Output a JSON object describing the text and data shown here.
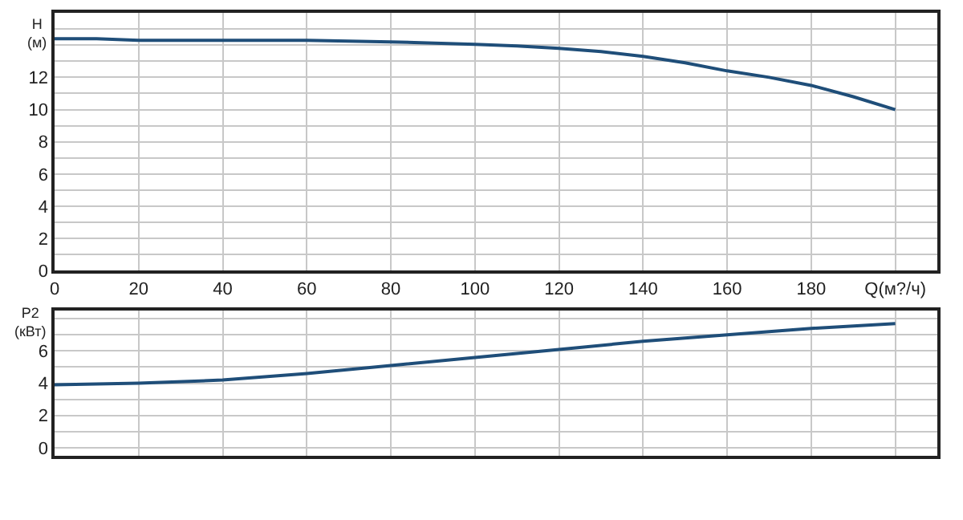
{
  "chart_data": [
    {
      "type": "line",
      "ylabel": "H (м)",
      "x": [
        0,
        10,
        20,
        40,
        60,
        80,
        100,
        110,
        120,
        130,
        140,
        150,
        160,
        170,
        180,
        190,
        200
      ],
      "series": [
        {
          "color": "#1f4e79",
          "values": [
            14.4,
            14.4,
            14.3,
            14.3,
            14.3,
            14.2,
            14.05,
            13.95,
            13.8,
            13.6,
            13.3,
            12.9,
            12.4,
            12.0,
            11.5,
            10.8,
            10.0
          ]
        }
      ],
      "xlim": [
        0,
        210
      ],
      "xticks": [
        0,
        20,
        40,
        60,
        80,
        100,
        120,
        140,
        160,
        180,
        {
          "value": 200,
          "label": "Q(м?/ч)"
        }
      ],
      "ylim": [
        0,
        16
      ],
      "yticks": [
        0,
        {
          "value": 1,
          "label": null
        },
        2,
        {
          "value": 3,
          "label": null
        },
        4,
        {
          "value": 5,
          "label": null
        },
        6,
        {
          "value": 7,
          "label": null
        },
        8,
        {
          "value": 9,
          "label": null
        },
        10,
        {
          "value": 11,
          "label": null
        },
        12,
        {
          "value": 13,
          "label": null
        },
        {
          "value": 14,
          "label": null
        },
        {
          "value": 15,
          "label": null
        }
      ],
      "grid": true,
      "legend": false,
      "line_style": "solid",
      "marker": "none"
    },
    {
      "type": "line",
      "ylabel": "P2 (кВт)",
      "x": [
        0,
        20,
        40,
        60,
        80,
        100,
        120,
        140,
        160,
        180,
        200
      ],
      "series": [
        {
          "color": "#1f4e79",
          "values": [
            3.9,
            4.0,
            4.2,
            4.6,
            5.1,
            5.6,
            6.1,
            6.6,
            7.0,
            7.4,
            7.7
          ]
        }
      ],
      "xlim": [
        0,
        210
      ],
      "xticks": [
        0,
        20,
        40,
        60,
        80,
        100,
        120,
        140,
        160,
        180,
        200
      ],
      "ylim": [
        -0.5,
        8.5
      ],
      "yticks": [
        0,
        {
          "value": 1,
          "label": null
        },
        2,
        {
          "value": 3,
          "label": null
        },
        4,
        {
          "value": 5,
          "label": null
        },
        6,
        {
          "value": 7,
          "label": null
        },
        {
          "value": 8,
          "label": null
        }
      ],
      "tick_labels": "y",
      "grid": true,
      "legend": false,
      "line_style": "solid",
      "marker": "none"
    }
  ]
}
